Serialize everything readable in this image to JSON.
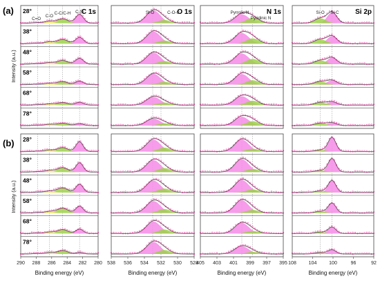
{
  "figure": {
    "group_labels": [
      "(a)",
      "(b)"
    ],
    "y_axis_label": "Intensity (a.u.)",
    "x_axis_label": "Binding energy (eV)",
    "angles": [
      "28°",
      "38°",
      "48°",
      "58°",
      "68°",
      "78°"
    ],
    "colors": {
      "envelope": "#555555",
      "data_markers": "#e8299a",
      "fill_pink": "#f58be6",
      "fill_green": "#9ed14a",
      "fill_yellow": "#f2e86a",
      "fill_blue": "#7fb2e5"
    }
  },
  "chart_data": [
    {
      "type": "area",
      "element": "C 1s",
      "x_reversed": true,
      "xlim": [
        290,
        280
      ],
      "xticks": [
        290,
        288,
        286,
        284,
        282,
        280
      ],
      "peak_labels": [
        "C=O",
        "C-O",
        "C-C/C-H",
        "C-Si"
      ],
      "peak_positions_eV": [
        287.8,
        286.3,
        284.6,
        282.4
      ],
      "group_a_components": [
        {
          "center": 282.4,
          "fwhm": 1.2,
          "color": "fill_pink",
          "rel": [
            1.0,
            0.72,
            0.66,
            0.4,
            0.32,
            0.22
          ]
        },
        {
          "center": 284.6,
          "fwhm": 1.6,
          "color": "fill_green",
          "rel": [
            0.5,
            0.48,
            0.42,
            0.35,
            0.3,
            0.28
          ]
        },
        {
          "center": 286.3,
          "fwhm": 1.4,
          "color": "fill_yellow",
          "rel": [
            0.22,
            0.2,
            0.18,
            0.16,
            0.14,
            0.13
          ]
        },
        {
          "center": 287.8,
          "fwhm": 1.4,
          "color": "fill_blue",
          "rel": [
            0.08,
            0.07,
            0.07,
            0.06,
            0.05,
            0.05
          ]
        }
      ],
      "group_b_components": [
        {
          "center": 282.4,
          "fwhm": 1.1,
          "color": "fill_pink",
          "rel": [
            1.0,
            0.95,
            0.85,
            0.7,
            0.45,
            0.15
          ]
        },
        {
          "center": 284.6,
          "fwhm": 1.6,
          "color": "fill_green",
          "rel": [
            0.4,
            0.45,
            0.48,
            0.5,
            0.4,
            0.35
          ]
        },
        {
          "center": 286.3,
          "fwhm": 1.4,
          "color": "fill_yellow",
          "rel": [
            0.15,
            0.16,
            0.16,
            0.16,
            0.14,
            0.13
          ]
        },
        {
          "center": 287.8,
          "fwhm": 1.4,
          "color": "fill_blue",
          "rel": [
            0.05,
            0.05,
            0.05,
            0.05,
            0.05,
            0.05
          ]
        }
      ]
    },
    {
      "type": "area",
      "element": "O 1s",
      "x_reversed": true,
      "xlim": [
        538,
        528
      ],
      "xticks": [
        538,
        536,
        534,
        532,
        530,
        528
      ],
      "peak_labels": [
        "Si-O",
        "C-O-C"
      ],
      "peak_positions_eV": [
        533.0,
        532.0
      ],
      "group_a_components": [
        {
          "center": 532.9,
          "fwhm": 2.0,
          "color": "fill_pink",
          "rel": [
            1.0,
            0.95,
            0.9,
            0.85,
            0.65,
            0.55
          ]
        },
        {
          "center": 531.6,
          "fwhm": 1.8,
          "color": "fill_green",
          "rel": [
            0.25,
            0.25,
            0.24,
            0.22,
            0.2,
            0.18
          ]
        }
      ],
      "group_b_components": [
        {
          "center": 532.9,
          "fwhm": 2.0,
          "color": "fill_pink",
          "rel": [
            0.45,
            0.45,
            0.45,
            0.45,
            0.45,
            0.45
          ]
        },
        {
          "center": 531.6,
          "fwhm": 1.8,
          "color": "fill_green",
          "rel": [
            0.15,
            0.15,
            0.15,
            0.15,
            0.15,
            0.15
          ]
        }
      ]
    },
    {
      "type": "area",
      "element": "N 1s",
      "x_reversed": true,
      "xlim": [
        405,
        395
      ],
      "xticks": [
        405,
        403,
        401,
        399,
        397,
        395
      ],
      "peak_labels": [
        "Pyrrolic N",
        "Pyridinic N"
      ],
      "peak_positions_eV": [
        400.0,
        398.7
      ],
      "group_a_components": [
        {
          "center": 400.0,
          "fwhm": 2.0,
          "color": "fill_pink",
          "rel": [
            0.1,
            0.12,
            0.12,
            0.12,
            0.1,
            0.1
          ]
        },
        {
          "center": 398.7,
          "fwhm": 1.8,
          "color": "fill_green",
          "rel": [
            0.06,
            0.06,
            0.06,
            0.05,
            0.05,
            0.05
          ]
        }
      ],
      "group_b_components": [
        {
          "center": 400.0,
          "fwhm": 2.0,
          "color": "fill_pink",
          "rel": [
            0.85,
            0.9,
            0.88,
            0.9,
            0.75,
            0.55
          ]
        },
        {
          "center": 398.7,
          "fwhm": 1.8,
          "color": "fill_green",
          "rel": [
            0.2,
            0.22,
            0.22,
            0.22,
            0.18,
            0.15
          ]
        }
      ]
    },
    {
      "type": "area",
      "element": "Si 2p",
      "x_reversed": true,
      "xlim": [
        108,
        92
      ],
      "xticks": [
        108,
        104,
        100,
        96,
        92
      ],
      "peak_labels": [
        "Si-O",
        "Si-C"
      ],
      "peak_positions_eV": [
        102.5,
        100.2
      ],
      "group_a_components": [
        {
          "center": 100.2,
          "fwhm": 2.2,
          "color": "fill_pink",
          "rel": [
            1.0,
            0.7,
            0.6,
            0.4,
            0.3,
            0.25
          ]
        },
        {
          "center": 102.5,
          "fwhm": 2.6,
          "color": "fill_green",
          "rel": [
            0.45,
            0.4,
            0.35,
            0.3,
            0.25,
            0.22
          ]
        }
      ],
      "group_b_components": [
        {
          "center": 100.2,
          "fwhm": 1.8,
          "color": "fill_pink",
          "rel": [
            1.0,
            0.95,
            0.85,
            0.7,
            0.45,
            0.3
          ]
        },
        {
          "center": 102.5,
          "fwhm": 2.4,
          "color": "fill_green",
          "rel": [
            0.12,
            0.12,
            0.12,
            0.12,
            0.1,
            0.1
          ]
        }
      ]
    }
  ]
}
